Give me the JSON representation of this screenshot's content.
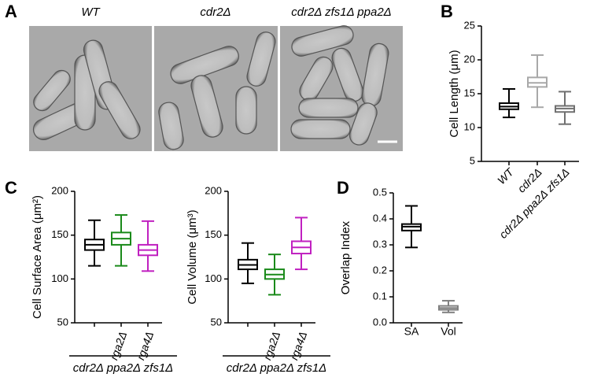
{
  "panel_labels": [
    "A",
    "B",
    "C",
    "D"
  ],
  "images": {
    "labels": [
      "WT",
      "cdr2Δ",
      "cdr2Δ zfs1Δ ppa2Δ"
    ]
  },
  "chart_data": [
    {
      "type": "box",
      "ylabel": "Cell Length (μm)",
      "categories": [
        "WT",
        "cdr2Δ",
        "cdr2Δ ppa2Δ zfs1Δ"
      ],
      "colors": [
        "#000000",
        "#a8a8a8",
        "#707070"
      ],
      "boxes": [
        {
          "min": 11.5,
          "q1": 12.7,
          "median": 13.1,
          "q3": 13.6,
          "max": 15.7
        },
        {
          "min": 13,
          "q1": 16,
          "median": 16.6,
          "q3": 17.4,
          "max": 20.7
        },
        {
          "min": 10.5,
          "q1": 12.3,
          "median": 12.8,
          "q3": 13.2,
          "max": 15.3
        }
      ],
      "ylim": [
        5,
        25
      ],
      "yticks": [
        5,
        10,
        15,
        20,
        25
      ]
    },
    {
      "type": "box",
      "ylabel": "Cell Surface Area (μm²)",
      "categories": [
        null,
        "rga2Δ",
        "rga4Δ"
      ],
      "group_label": "cdr2Δ ppa2Δ zfs1Δ",
      "colors": [
        "#000000",
        "#1a8a1a",
        "#c020c0"
      ],
      "boxes": [
        {
          "min": 115,
          "q1": 133,
          "median": 139,
          "q3": 145,
          "max": 167
        },
        {
          "min": 115,
          "q1": 139,
          "median": 146,
          "q3": 153,
          "max": 173
        },
        {
          "min": 109,
          "q1": 127,
          "median": 133,
          "q3": 139,
          "max": 166
        }
      ],
      "ylim": [
        50,
        200
      ],
      "yticks": [
        50,
        100,
        150,
        200
      ]
    },
    {
      "type": "box",
      "ylabel": "Cell Volume (μm³)",
      "categories": [
        null,
        "rga2Δ",
        "rga4Δ"
      ],
      "group_label": "cdr2Δ ppa2Δ zfs1Δ",
      "colors": [
        "#000000",
        "#1a8a1a",
        "#c020c0"
      ],
      "boxes": [
        {
          "min": 95,
          "q1": 111,
          "median": 116,
          "q3": 122,
          "max": 141
        },
        {
          "min": 82,
          "q1": 100,
          "median": 105,
          "q3": 111,
          "max": 128
        },
        {
          "min": 111,
          "q1": 129,
          "median": 136,
          "q3": 143,
          "max": 170
        }
      ],
      "ylim": [
        50,
        200
      ],
      "yticks": [
        50,
        100,
        150,
        200
      ]
    },
    {
      "type": "box",
      "ylabel": "Overlap Index",
      "categories": [
        "SA",
        "Vol"
      ],
      "colors": [
        "#000000",
        "#808080"
      ],
      "boxes": [
        {
          "min": 0.29,
          "q1": 0.355,
          "median": 0.37,
          "q3": 0.38,
          "max": 0.45
        },
        {
          "min": 0.04,
          "q1": 0.05,
          "median": 0.057,
          "q3": 0.065,
          "max": 0.085
        }
      ],
      "ylim": [
        0,
        0.5
      ],
      "yticks": [
        {
          "value": 0,
          "label": "0.0"
        },
        0.1,
        0.2,
        0.3,
        0.4,
        0.5
      ]
    }
  ]
}
